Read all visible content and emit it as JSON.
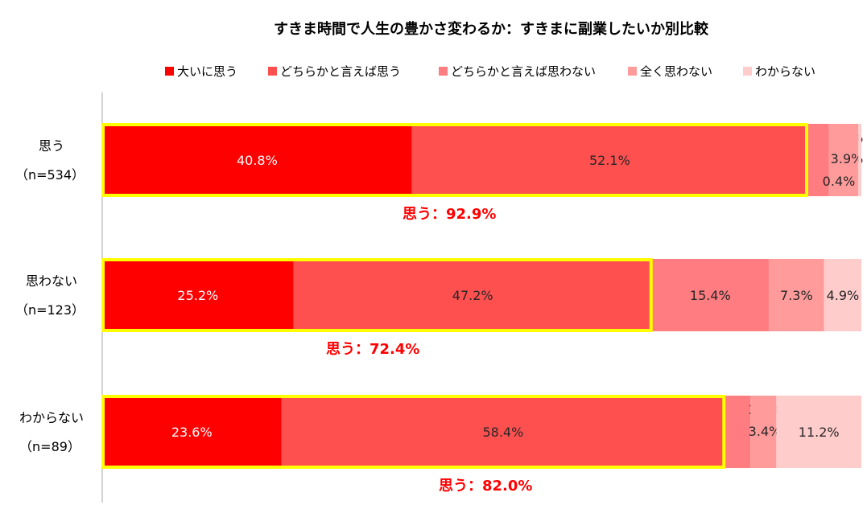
{
  "chart_data": {
    "type": "bar",
    "orientation": "horizontal",
    "stacked": true,
    "title": "すきま時間で人生の豊かさ変わるか：すきまに副業したいか別比較",
    "legend_position": "top",
    "categories": [
      {
        "label": "思う",
        "sublabel": "（n=534）"
      },
      {
        "label": "思わない",
        "sublabel": "（n=123）"
      },
      {
        "label": "わからない",
        "sublabel": "（n=89）"
      }
    ],
    "series": [
      {
        "name": "大いに思う",
        "color": "#ff0000",
        "values": [
          40.8,
          25.2,
          23.6
        ]
      },
      {
        "name": "どちらかと言えば思う",
        "color": "#ff5050",
        "values": [
          52.1,
          47.2,
          58.4
        ]
      },
      {
        "name": "どちらかと言えば思わない",
        "color": "#ff7c80",
        "values": [
          2.8,
          15.4,
          3.4
        ]
      },
      {
        "name": "全く思わない",
        "color": "#ff9b9b",
        "values": [
          3.9,
          7.3,
          3.4
        ]
      },
      {
        "name": "わからない",
        "color": "#ffcccc",
        "values": [
          0.4,
          4.9,
          11.2
        ]
      }
    ],
    "value_suffix": "%",
    "highlight_color": "#ffff00",
    "highlight_text_color": "#ff0000",
    "totals": [
      {
        "label": "思う：92.9%"
      },
      {
        "label": "思う：72.4%"
      },
      {
        "label": "思う：82.0%"
      }
    ]
  }
}
